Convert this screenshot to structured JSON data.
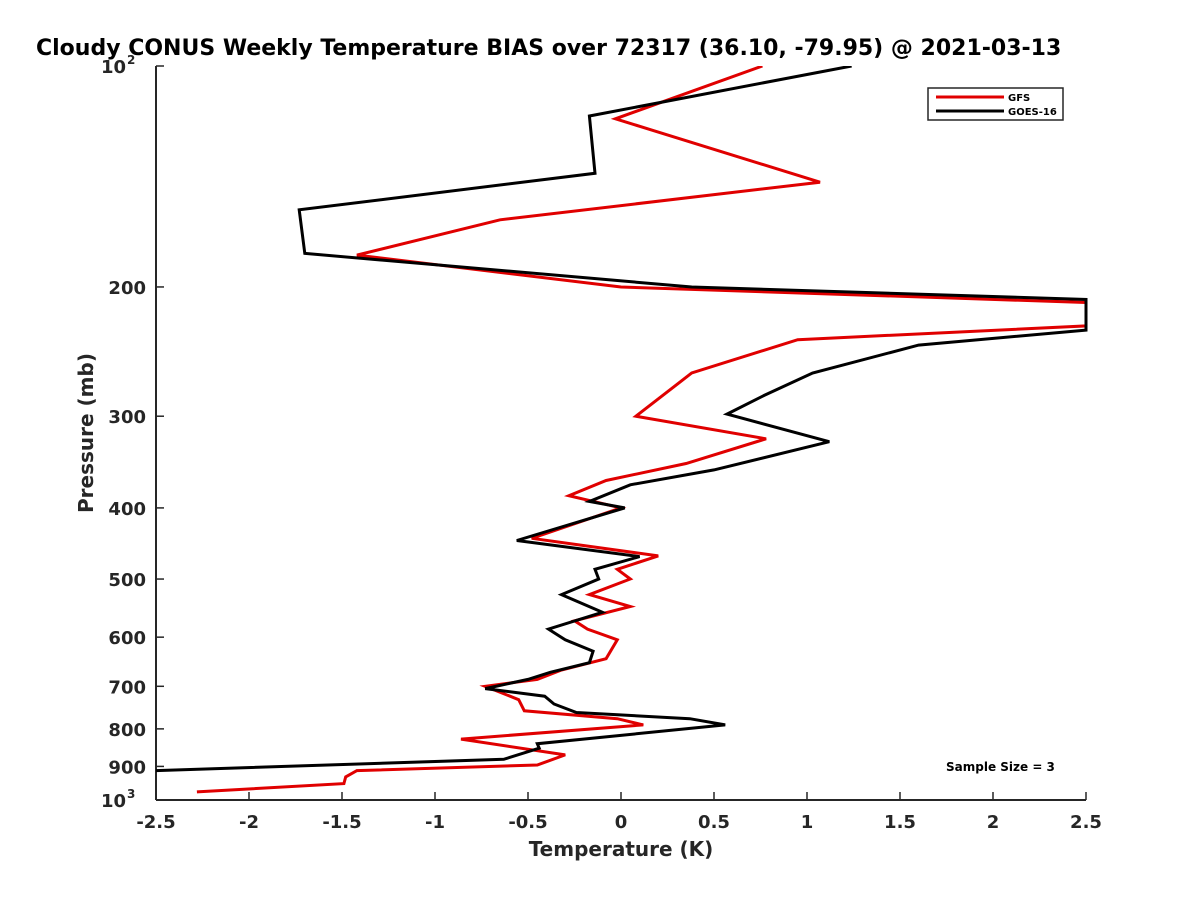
{
  "chart_data": {
    "type": "line",
    "title": "Cloudy CONUS Weekly Temperature BIAS over 72317 (36.10, -79.95) @ 2021-03-13",
    "xlabel": "Temperature (K)",
    "ylabel": "Pressure (mb)",
    "xlim": [
      -2.5,
      2.5
    ],
    "ylim": [
      100,
      1000
    ],
    "y_scale": "log",
    "y_reversed": true,
    "grid": false,
    "legend_position": "top-right",
    "x_ticks": [
      "-2.5",
      "-2",
      "-1.5",
      "-1",
      "-0.5",
      "0",
      "0.5",
      "1",
      "1.5",
      "2",
      "2.5"
    ],
    "y_ticks": [
      {
        "value": 100,
        "base": "10",
        "exp": "2"
      },
      {
        "value": 200,
        "label": "200"
      },
      {
        "value": 300,
        "label": "300"
      },
      {
        "value": 400,
        "label": "400"
      },
      {
        "value": 500,
        "label": "500"
      },
      {
        "value": 600,
        "label": "600"
      },
      {
        "value": 700,
        "label": "700"
      },
      {
        "value": 800,
        "label": "800"
      },
      {
        "value": 900,
        "label": "900"
      },
      {
        "value": 1000,
        "base": "10",
        "exp": "3"
      }
    ],
    "series": [
      {
        "name": "GFS",
        "color": "#e00000",
        "points": [
          [
            0.76,
            100
          ],
          [
            -0.03,
            118
          ],
          [
            1.07,
            144
          ],
          [
            -0.65,
            162
          ],
          [
            -1.42,
            181
          ],
          [
            0.0,
            200
          ],
          [
            2.5,
            210
          ],
          [
            2.5,
            226
          ],
          [
            0.95,
            236
          ],
          [
            0.38,
            262
          ],
          [
            0.08,
            300
          ],
          [
            0.78,
            322
          ],
          [
            0.35,
            348
          ],
          [
            -0.08,
            367
          ],
          [
            -0.28,
            385
          ],
          [
            0.0,
            400
          ],
          [
            -0.48,
            440
          ],
          [
            0.2,
            465
          ],
          [
            -0.02,
            485
          ],
          [
            0.05,
            500
          ],
          [
            -0.17,
            525
          ],
          [
            0.05,
            545
          ],
          [
            -0.25,
            570
          ],
          [
            -0.18,
            585
          ],
          [
            -0.02,
            605
          ],
          [
            -0.08,
            642
          ],
          [
            -0.32,
            665
          ],
          [
            -0.45,
            685
          ],
          [
            -0.73,
            700
          ],
          [
            -0.55,
            730
          ],
          [
            -0.52,
            756
          ],
          [
            -0.02,
            775
          ],
          [
            0.12,
            790
          ],
          [
            -0.86,
            826
          ],
          [
            -0.3,
            868
          ],
          [
            -0.45,
            896
          ],
          [
            -1.42,
            912
          ],
          [
            -1.48,
            930
          ],
          [
            -1.49,
            950
          ],
          [
            -2.28,
            975
          ]
        ]
      },
      {
        "name": "GOES-16",
        "color": "#000000",
        "points": [
          [
            1.24,
            100
          ],
          [
            -0.17,
            117
          ],
          [
            -0.14,
            140
          ],
          [
            -1.73,
            157
          ],
          [
            -1.7,
            180
          ],
          [
            0.38,
            200
          ],
          [
            2.5,
            208
          ],
          [
            2.5,
            229
          ],
          [
            1.6,
            240
          ],
          [
            1.03,
            262
          ],
          [
            0.77,
            281
          ],
          [
            0.57,
            298
          ],
          [
            1.12,
            325
          ],
          [
            0.5,
            355
          ],
          [
            0.05,
            372
          ],
          [
            -0.17,
            392
          ],
          [
            0.02,
            400
          ],
          [
            -0.56,
            443
          ],
          [
            0.1,
            466
          ],
          [
            -0.14,
            485
          ],
          [
            -0.12,
            500
          ],
          [
            -0.32,
            525
          ],
          [
            -0.1,
            555
          ],
          [
            -0.39,
            585
          ],
          [
            -0.3,
            605
          ],
          [
            -0.15,
            627
          ],
          [
            -0.17,
            650
          ],
          [
            -0.38,
            670
          ],
          [
            -0.5,
            685
          ],
          [
            -0.73,
            705
          ],
          [
            -0.41,
            722
          ],
          [
            -0.36,
            740
          ],
          [
            -0.24,
            760
          ],
          [
            0.37,
            775
          ],
          [
            0.56,
            790
          ],
          [
            -0.45,
            838
          ],
          [
            -0.44,
            850
          ],
          [
            -0.63,
            880
          ],
          [
            -2.5,
            912
          ]
        ]
      }
    ],
    "annotations": [
      {
        "text": "Sample Size = 3",
        "position": "bottom-right"
      }
    ]
  }
}
